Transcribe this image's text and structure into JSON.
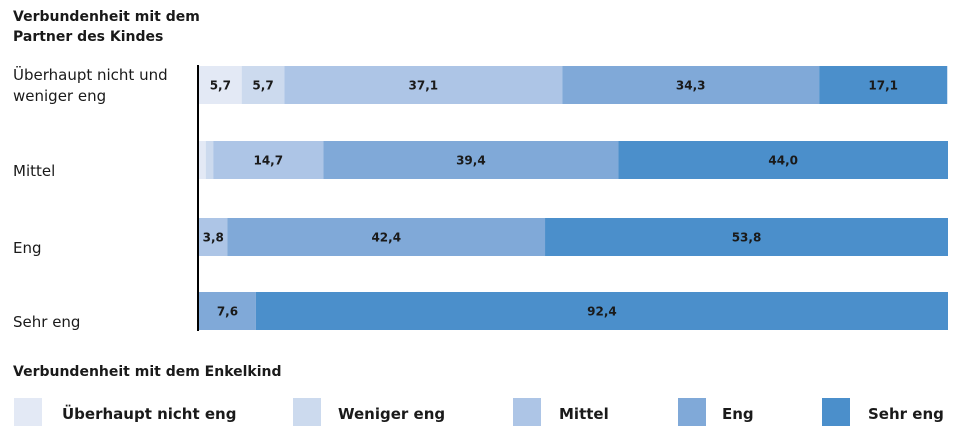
{
  "chart_data": {
    "type": "stacked_barh",
    "title": "Verbundenheit mit dem Partner des Kindes",
    "legend_title": "Verbundenheit mit dem Enkelkind",
    "categories": [
      "Überhaupt nicht und weniger eng",
      "Mittel",
      "Eng",
      "Sehr eng"
    ],
    "xlim": [
      0,
      100
    ],
    "series": [
      {
        "name": "Überhaupt nicht eng",
        "color": "#e3e9f5",
        "values": [
          5.7,
          0.9,
          0,
          0
        ],
        "value_labels": [
          "5,7",
          null,
          null,
          null
        ]
      },
      {
        "name": "Weniger eng",
        "color": "#ccdaee",
        "values": [
          5.7,
          1.0,
          0,
          0
        ],
        "value_labels": [
          "5,7",
          null,
          null,
          null
        ]
      },
      {
        "name": "Mittel",
        "color": "#adc5e6",
        "values": [
          37.1,
          14.7,
          3.8,
          0
        ],
        "value_labels": [
          "37,1",
          "14,7",
          "3,8",
          null
        ]
      },
      {
        "name": "Eng",
        "color": "#80a9d8",
        "values": [
          34.3,
          39.4,
          42.4,
          7.6
        ],
        "value_labels": [
          "34,3",
          "39,4",
          "42,4",
          "7,6"
        ]
      },
      {
        "name": "Sehr eng",
        "color": "#4b8fcb",
        "values": [
          17.1,
          44.0,
          53.8,
          92.4
        ],
        "value_labels": [
          "17,1",
          "44,0",
          "53,8",
          "92,4"
        ]
      }
    ]
  }
}
